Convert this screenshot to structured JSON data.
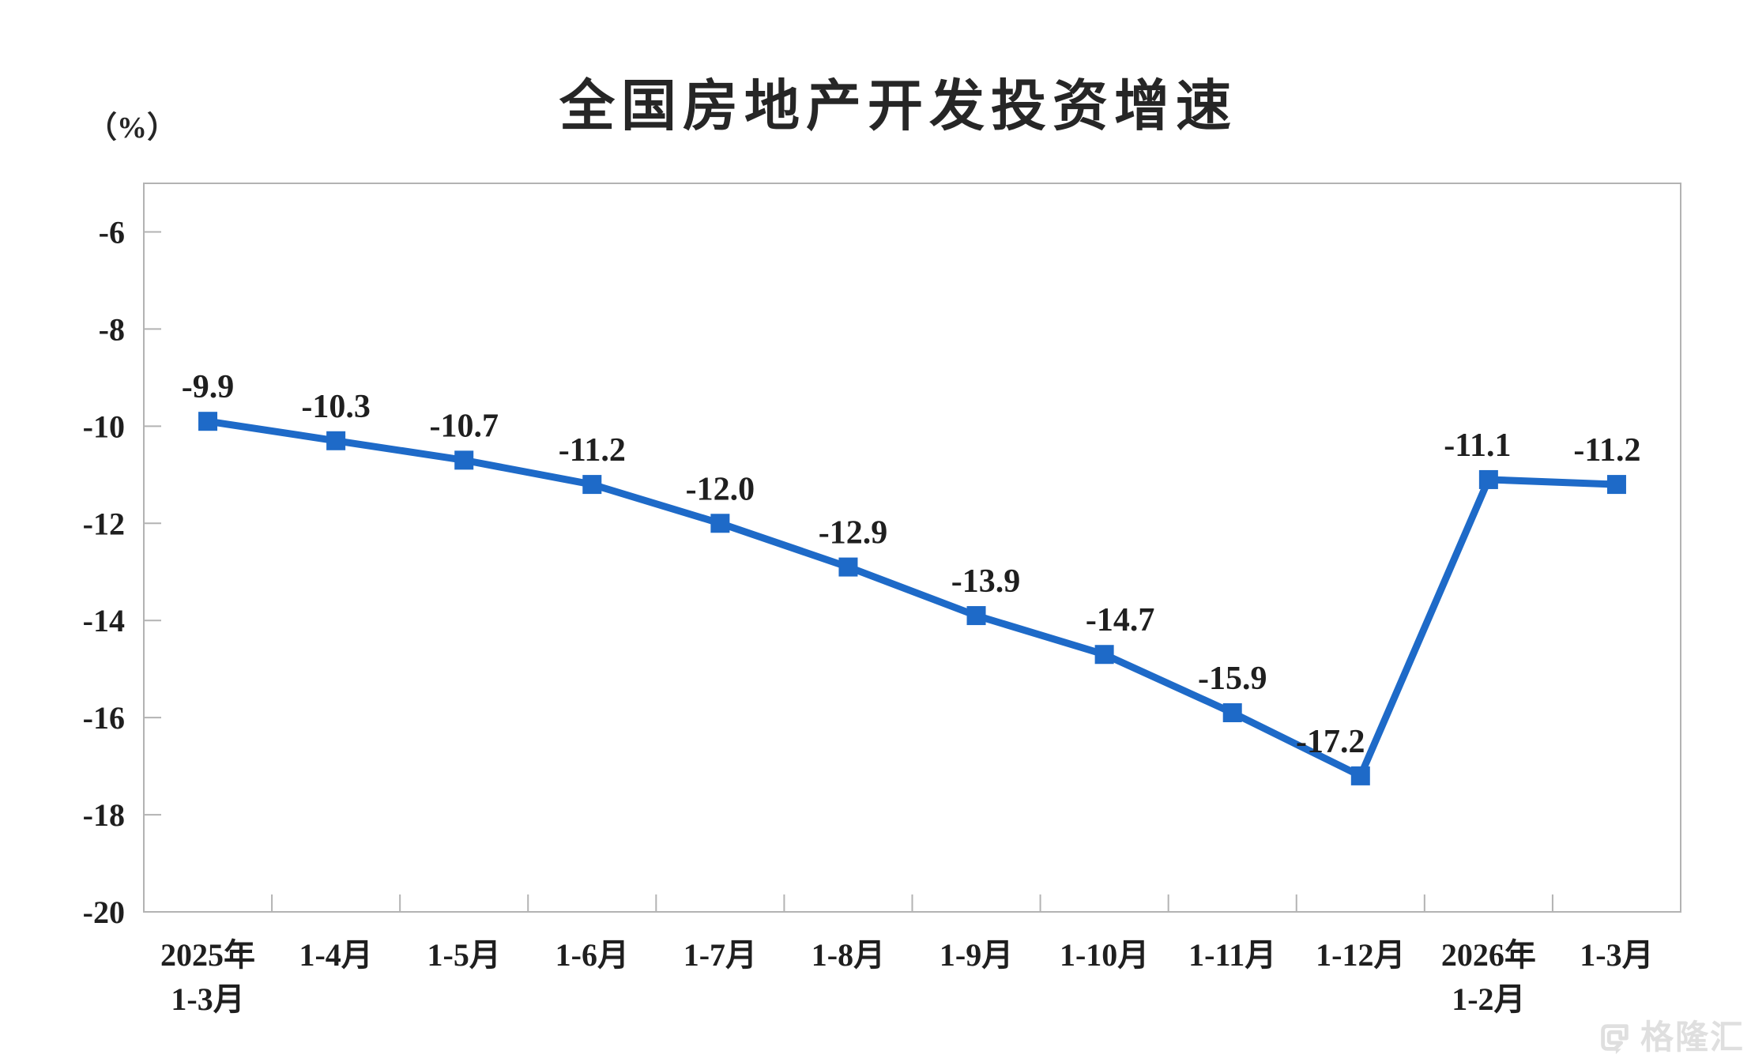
{
  "header": {
    "title": "全国房地产开发投资增速",
    "unit_label": "（%）"
  },
  "watermark": {
    "logo_icon": "gelonghui-G",
    "text": "格隆汇",
    "color": "#dfdfdf"
  },
  "chart_data": {
    "type": "line",
    "title": "全国房地产开发投资增速",
    "ylabel": "（%）",
    "xlabel": "",
    "categories": [
      [
        "2025年",
        "1-3月"
      ],
      [
        "1-4月"
      ],
      [
        "1-5月"
      ],
      [
        "1-6月"
      ],
      [
        "1-7月"
      ],
      [
        "1-8月"
      ],
      [
        "1-9月"
      ],
      [
        "1-10月"
      ],
      [
        "1-11月"
      ],
      [
        "1-12月"
      ],
      [
        "2026年",
        "1-2月"
      ],
      [
        "1-3月"
      ]
    ],
    "series": [
      {
        "name": "全国房地产开发投资增速",
        "values": [
          -9.9,
          -10.3,
          -10.7,
          -11.2,
          -12.0,
          -12.9,
          -13.9,
          -14.7,
          -15.9,
          -17.2,
          -11.1,
          -11.2
        ],
        "data_labels": [
          "-9.9",
          "-10.3",
          "-10.7",
          "-11.2",
          "-12.0",
          "-12.9",
          "-13.9",
          "-14.7",
          "-15.9",
          "-17.2",
          "-11.1",
          "-11.2"
        ]
      }
    ],
    "y_axis": {
      "min": -20,
      "max": -5,
      "tick_step": 2,
      "tick_labels": [
        "-6",
        "-8",
        "-10",
        "-12",
        "-14",
        "-16",
        "-18",
        "-20"
      ],
      "tick_values": [
        -6,
        -8,
        -10,
        -12,
        -14,
        -16,
        -18,
        -20
      ]
    },
    "grid": false,
    "legend": false,
    "marker_shape": "square",
    "colors": {
      "line": "#1e6ac8",
      "marker": "#1e6ac8",
      "data_label": "#1f1f1f",
      "tick_label": "#1f1f1f",
      "axis": "#b3b3b3",
      "title": "#262626"
    }
  }
}
